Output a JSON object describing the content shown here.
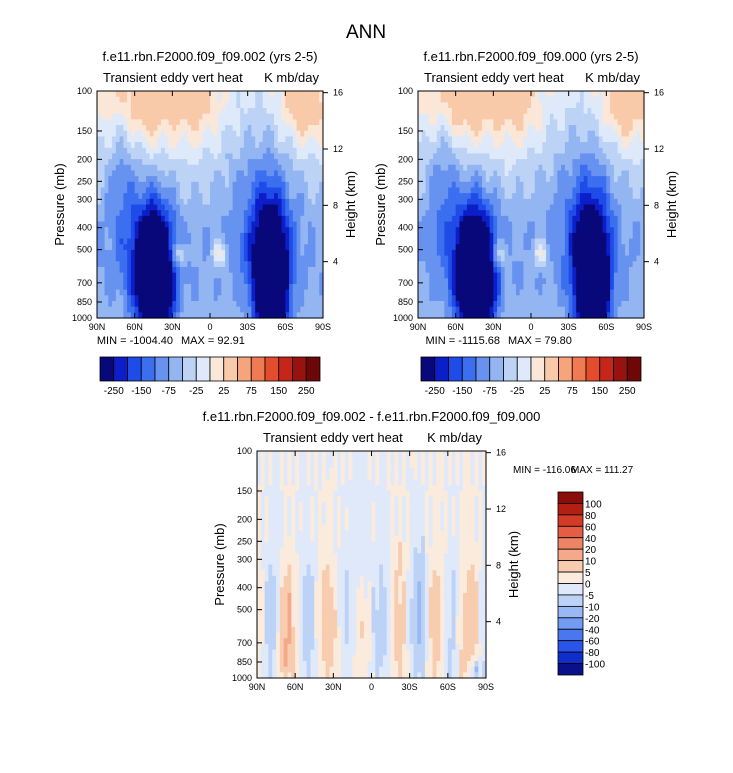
{
  "figure": {
    "title": "ANN"
  },
  "colors": {
    "abs_scale": [
      "#08087a",
      "#0c1ec8",
      "#1f4be8",
      "#3b6ff0",
      "#6792f0",
      "#93b6f2",
      "#bcd3f6",
      "#deeaf9",
      "#fbe7d8",
      "#f9caa9",
      "#f5a47c",
      "#f07a52",
      "#e44d2b",
      "#c6261a",
      "#98130f",
      "#6e0707"
    ],
    "diff_scale": [
      "#0a0f8c",
      "#102ecc",
      "#2a55ea",
      "#4a77f0",
      "#729bf2",
      "#98b9f4",
      "#bdd2f7",
      "#dfe9fa",
      "#fbebdc",
      "#f8ccae",
      "#f4a98a",
      "#ee8466",
      "#e65d45",
      "#d23b26",
      "#b21f13",
      "#8a0d09"
    ]
  },
  "chart_data": [
    {
      "type": "heatmap",
      "title": "f.e11.rbn.F2000.f09_f09.002 (yrs 2-5)",
      "left_label": "Transient eddy vert heat",
      "right_label": "K mb/day",
      "xlabel": "",
      "ylabel": "Pressure (mb)",
      "ylabel_right": "Height (km)",
      "x_ticks": [
        "90N",
        "60N",
        "30N",
        "0",
        "30S",
        "60S",
        "90S"
      ],
      "x_tick_values": [
        90,
        60,
        30,
        0,
        -30,
        -60,
        -90
      ],
      "y_ticks": [
        "100",
        "150",
        "200",
        "250",
        "300",
        "400",
        "500",
        "700",
        "850",
        "1000"
      ],
      "y_tick_values": [
        100,
        150,
        200,
        250,
        300,
        400,
        500,
        700,
        850,
        1000
      ],
      "y_scale": "log",
      "right_ticks": [
        "16",
        "12",
        "8",
        "4"
      ],
      "right_tick_values": [
        16,
        12,
        8,
        4
      ],
      "min_text": "MIN = -1004.40",
      "max_text": "MAX = 92.91",
      "colorbar_labels": [
        "-250",
        "-150",
        "-75",
        "-25",
        "25",
        "75",
        "150",
        "250"
      ],
      "colorbar_orientation": "horizontal"
    },
    {
      "type": "heatmap",
      "title": "f.e11.rbn.F2000.f09_f09.000 (yrs 2-5)",
      "left_label": "Transient eddy vert heat",
      "right_label": "K mb/day",
      "xlabel": "",
      "ylabel": "Pressure (mb)",
      "ylabel_right": "Height (km)",
      "x_ticks": [
        "90N",
        "60N",
        "30N",
        "0",
        "30S",
        "60S",
        "90S"
      ],
      "x_tick_values": [
        90,
        60,
        30,
        0,
        -30,
        -60,
        -90
      ],
      "y_ticks": [
        "100",
        "150",
        "200",
        "250",
        "300",
        "400",
        "500",
        "700",
        "850",
        "1000"
      ],
      "y_tick_values": [
        100,
        150,
        200,
        250,
        300,
        400,
        500,
        700,
        850,
        1000
      ],
      "y_scale": "log",
      "right_ticks": [
        "16",
        "12",
        "8",
        "4"
      ],
      "right_tick_values": [
        16,
        12,
        8,
        4
      ],
      "min_text": "MIN = -1115.68",
      "max_text": "MAX = 79.80",
      "colorbar_labels": [
        "-250",
        "-150",
        "-75",
        "-25",
        "25",
        "75",
        "150",
        "250"
      ],
      "colorbar_orientation": "horizontal"
    },
    {
      "type": "heatmap",
      "title": "f.e11.rbn.F2000.f09_f09.002 - f.e11.rbn.F2000.f09_f09.000",
      "left_label": "Transient eddy vert heat",
      "right_label": "K mb/day",
      "xlabel": "",
      "ylabel": "Pressure (mb)",
      "ylabel_right": "Height (km)",
      "x_ticks": [
        "90N",
        "60N",
        "30N",
        "0",
        "30S",
        "60S",
        "90S"
      ],
      "x_tick_values": [
        90,
        60,
        30,
        0,
        -30,
        -60,
        -90
      ],
      "y_ticks": [
        "100",
        "150",
        "200",
        "250",
        "300",
        "400",
        "500",
        "700",
        "850",
        "1000"
      ],
      "y_tick_values": [
        100,
        150,
        200,
        250,
        300,
        400,
        500,
        700,
        850,
        1000
      ],
      "y_scale": "log",
      "right_ticks": [
        "16",
        "12",
        "8",
        "4"
      ],
      "right_tick_values": [
        16,
        12,
        8,
        4
      ],
      "min_text": "MIN = -116.06",
      "max_text": "MAX = 111.27",
      "colorbar_labels": [
        "100",
        "80",
        "60",
        "40",
        "20",
        "10",
        "5",
        "0",
        "-5",
        "-10",
        "-20",
        "-40",
        "-60",
        "-80",
        "-100"
      ],
      "colorbar_orientation": "vertical"
    }
  ]
}
